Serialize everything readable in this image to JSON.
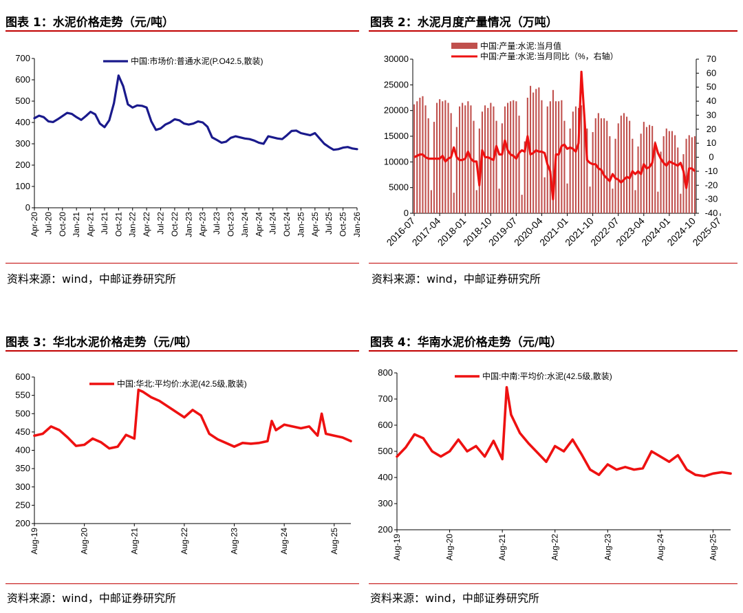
{
  "source_label": "资料来源：wind，中邮证券研究所",
  "colors": {
    "title_rule": "#c00000",
    "navy": "#1a1a8c",
    "red": "#ee1111",
    "bar": "#c0504d"
  },
  "chart_data": [
    {
      "id": "c1",
      "type": "line",
      "figure_title": "图表 1：水泥价格走势（元/吨）",
      "legend": "中国:市场价:普通水泥(P.O42.5,散装)",
      "ylim": [
        0,
        700
      ],
      "yticks": [
        "0",
        "100",
        "200",
        "300",
        "400",
        "500",
        "600",
        "700"
      ],
      "xticks": [
        "Apr-20",
        "Jul-20",
        "Oct-20",
        "Jan-21",
        "Apr-21",
        "Jul-21",
        "Oct-21",
        "Jan-22",
        "Apr-22",
        "Jul-22",
        "Oct-22",
        "Jan-23",
        "Apr-23",
        "Jul-23",
        "Oct-23",
        "Jan-24",
        "Apr-24",
        "Jul-24",
        "Oct-24",
        "Jan-25",
        "Apr-25",
        "Jul-25",
        "Oct-25",
        "Jan-26"
      ],
      "x": [
        "2020-04",
        "2020-05",
        "2020-06",
        "2020-07",
        "2020-08",
        "2020-09",
        "2020-10",
        "2020-11",
        "2020-12",
        "2021-01",
        "2021-02",
        "2021-03",
        "2021-04",
        "2021-05",
        "2021-06",
        "2021-07",
        "2021-08",
        "2021-09",
        "2021-10",
        "2021-11",
        "2021-12",
        "2022-01",
        "2022-02",
        "2022-03",
        "2022-04",
        "2022-05",
        "2022-06",
        "2022-07",
        "2022-08",
        "2022-09",
        "2022-10",
        "2022-11",
        "2022-12",
        "2023-01",
        "2023-02",
        "2023-03",
        "2023-04",
        "2023-05",
        "2023-06",
        "2023-07",
        "2023-08",
        "2023-09",
        "2023-10",
        "2023-11",
        "2023-12",
        "2024-01",
        "2024-02",
        "2024-03",
        "2024-04",
        "2024-05",
        "2024-06",
        "2024-07",
        "2024-08",
        "2024-09",
        "2024-10",
        "2024-11",
        "2024-12",
        "2025-01",
        "2025-02",
        "2025-03",
        "2025-04",
        "2025-05",
        "2025-06",
        "2025-07",
        "2025-08",
        "2025-09",
        "2025-10",
        "2025-11",
        "2025-12",
        "2026-01"
      ],
      "series": [
        {
          "name": "中国:市场价:普通水泥(P.O42.5,散装)",
          "color": "#1a1a8c",
          "values": [
            420,
            432,
            425,
            405,
            402,
            415,
            430,
            445,
            440,
            425,
            412,
            430,
            450,
            438,
            395,
            378,
            410,
            490,
            620,
            570,
            485,
            470,
            480,
            478,
            470,
            405,
            365,
            372,
            390,
            400,
            415,
            410,
            395,
            390,
            395,
            405,
            400,
            380,
            330,
            318,
            305,
            310,
            328,
            335,
            330,
            325,
            322,
            315,
            305,
            300,
            335,
            330,
            325,
            322,
            340,
            360,
            362,
            350,
            345,
            340,
            350,
            325,
            300,
            285,
            272,
            275,
            282,
            285,
            278,
            275
          ]
        }
      ]
    },
    {
      "id": "c2",
      "type": "bar",
      "figure_title": "图表 2：水泥月度产量情况（万吨）",
      "legend_bar": "中国:产量:水泥:当月值",
      "legend_line": "中国:产量:水泥:当月同比（%，右轴）",
      "ylim": [
        0,
        30000
      ],
      "y2lim": [
        -40,
        70
      ],
      "yticks": [
        "0",
        "5000",
        "10000",
        "15000",
        "20000",
        "25000",
        "30000"
      ],
      "y2ticks": [
        "-40",
        "-30",
        "-20",
        "-10",
        "0",
        "10",
        "20",
        "30",
        "40",
        "50",
        "60",
        "70"
      ],
      "xticks": [
        "2016-07",
        "2017-04",
        "2018-01",
        "2018-10",
        "2019-07",
        "2020-04",
        "2021-01",
        "2021-10",
        "2022-07",
        "2023-04",
        "2024-01",
        "2024-10",
        "2025-07"
      ],
      "bar_values": [
        21200,
        21800,
        22500,
        22800,
        21000,
        18500,
        4500,
        17800,
        21500,
        22200,
        21800,
        22000,
        21500,
        19500,
        4000,
        16800,
        20800,
        21500,
        21000,
        21800,
        21000,
        18000,
        4500,
        16500,
        19800,
        21000,
        20500,
        21500,
        20800,
        18000,
        4800,
        17500,
        20800,
        21500,
        21800,
        22000,
        21800,
        19000,
        3600,
        14000,
        22500,
        24800,
        23500,
        24200,
        24500,
        22000,
        7000,
        20800,
        21800,
        24000,
        21800,
        21800,
        22000,
        18000,
        5800,
        16500,
        19800,
        20800,
        20500,
        21000,
        19800,
        16500,
        5200,
        15800,
        18500,
        19500,
        18500,
        18500,
        18000,
        15000,
        4800,
        14500,
        17500,
        19000,
        19500,
        18800,
        18000,
        14500,
        4500,
        13000,
        15500,
        17800,
        16800,
        17200,
        17000,
        14000,
        4200,
        12000,
        15000,
        16500,
        16000,
        16000,
        15200,
        12800,
        3800,
        11500,
        14500,
        15200,
        14800,
        15000
      ],
      "line_values": [
        0,
        1,
        2,
        2,
        0,
        -1,
        -1,
        -1,
        -1,
        -1,
        1,
        -3,
        -1,
        0,
        7,
        0,
        -2,
        -2,
        -1,
        4,
        -1,
        -3,
        -3,
        -20,
        5,
        0,
        0,
        -1,
        -2,
        8,
        2,
        2,
        12,
        5,
        2,
        1,
        -1,
        3,
        5,
        4,
        15,
        2,
        3,
        5,
        4,
        4,
        3,
        -5,
        -10,
        -30,
        2,
        2,
        8,
        9,
        6,
        7,
        6,
        4,
        10,
        61,
        30,
        -2,
        -4,
        -5,
        -5,
        -8,
        -9,
        -13,
        -15,
        -17,
        -12,
        -15,
        -16,
        -18,
        -16,
        -14,
        -15,
        -10,
        -12,
        -10,
        -12,
        -5,
        -8,
        -7,
        -4,
        10,
        3,
        -1,
        -4,
        -6,
        -3,
        -4,
        -5,
        -6,
        -4,
        -10,
        -22,
        -8,
        -8,
        -10
      ]
    },
    {
      "id": "c3",
      "type": "line",
      "figure_title": "图表 3：华北水泥价格走势（元/吨）",
      "legend": "中国:华北:平均价:水泥(42.5级,散装)",
      "ylim": [
        200,
        600
      ],
      "yticks": [
        "200",
        "250",
        "300",
        "350",
        "400",
        "450",
        "500",
        "550",
        "600"
      ],
      "xticks": [
        "Aug-19",
        "Aug-20",
        "Aug-21",
        "Aug-22",
        "Aug-23",
        "Aug-24",
        "Aug-25"
      ],
      "x": [
        "2019-08",
        "2019-10",
        "2019-12",
        "2020-02",
        "2020-04",
        "2020-06",
        "2020-08",
        "2020-10",
        "2020-12",
        "2021-02",
        "2021-04",
        "2021-06",
        "2021-08",
        "2021-09",
        "2021-10",
        "2021-12",
        "2022-02",
        "2022-04",
        "2022-06",
        "2022-08",
        "2022-10",
        "2022-12",
        "2023-02",
        "2023-04",
        "2023-06",
        "2023-08",
        "2023-10",
        "2023-12",
        "2024-02",
        "2024-04",
        "2024-05",
        "2024-06",
        "2024-08",
        "2024-10",
        "2024-12",
        "2025-02",
        "2025-04",
        "2025-05",
        "2025-06",
        "2025-08",
        "2025-10",
        "2025-12"
      ],
      "series": [
        {
          "name": "中国:华北:平均价:水泥(42.5级,散装)",
          "color": "#ee1111",
          "values": [
            440,
            445,
            465,
            455,
            435,
            412,
            415,
            432,
            422,
            405,
            410,
            442,
            432,
            565,
            560,
            545,
            535,
            520,
            505,
            490,
            510,
            495,
            445,
            430,
            420,
            410,
            420,
            418,
            420,
            425,
            480,
            455,
            470,
            465,
            460,
            465,
            440,
            500,
            445,
            440,
            435,
            425
          ]
        }
      ]
    },
    {
      "id": "c4",
      "type": "line",
      "figure_title": "图表 4：华南水泥价格走势（元/吨）",
      "legend": "中国:中南:平均价:水泥(42.5级,散装)",
      "ylim": [
        200,
        800
      ],
      "yticks": [
        "200",
        "300",
        "400",
        "500",
        "600",
        "700",
        "800"
      ],
      "xticks": [
        "Aug-19",
        "Aug-20",
        "Aug-21",
        "Aug-22",
        "Aug-23",
        "Aug-24",
        "Aug-25"
      ],
      "x": [
        "2019-08",
        "2019-10",
        "2019-12",
        "2020-02",
        "2020-04",
        "2020-06",
        "2020-08",
        "2020-10",
        "2020-12",
        "2021-02",
        "2021-04",
        "2021-06",
        "2021-08",
        "2021-09",
        "2021-10",
        "2021-12",
        "2022-02",
        "2022-04",
        "2022-06",
        "2022-08",
        "2022-10",
        "2022-12",
        "2023-02",
        "2023-04",
        "2023-06",
        "2023-08",
        "2023-10",
        "2023-12",
        "2024-02",
        "2024-04",
        "2024-06",
        "2024-08",
        "2024-10",
        "2024-12",
        "2025-02",
        "2025-04",
        "2025-06",
        "2025-08",
        "2025-10",
        "2025-12"
      ],
      "series": [
        {
          "name": "中国:中南:平均价:水泥(42.5级,散装)",
          "color": "#ee1111",
          "values": [
            480,
            515,
            565,
            550,
            500,
            480,
            500,
            545,
            500,
            520,
            480,
            540,
            470,
            745,
            640,
            570,
            530,
            495,
            460,
            520,
            500,
            545,
            490,
            430,
            410,
            450,
            430,
            440,
            430,
            435,
            500,
            480,
            460,
            485,
            430,
            410,
            405,
            415,
            420,
            415
          ]
        }
      ]
    }
  ]
}
